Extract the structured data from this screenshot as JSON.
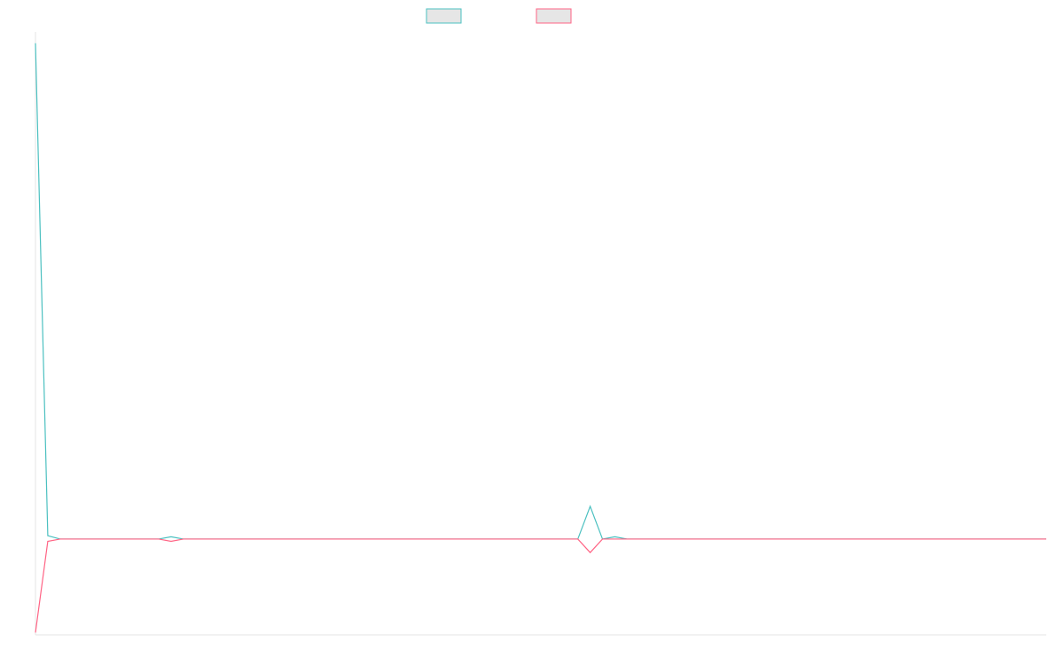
{
  "chart_data": {
    "type": "line",
    "title": "",
    "xlabel": "",
    "ylabel": "",
    "grid": false,
    "legend_position": "top",
    "x": [
      0,
      1,
      2,
      3,
      4,
      5,
      6,
      7,
      8,
      9,
      10,
      11,
      12,
      13,
      14,
      15,
      16,
      17,
      18,
      19,
      20,
      21,
      22,
      23,
      24,
      25,
      26,
      27,
      28,
      29,
      30,
      31,
      32,
      33,
      34,
      35,
      36,
      37,
      38,
      39,
      40,
      41,
      42,
      43,
      44,
      45,
      46,
      47,
      48,
      49,
      50,
      51,
      52,
      53,
      54,
      55,
      56,
      57,
      58,
      59,
      60,
      61,
      62,
      63,
      64,
      65,
      66,
      67,
      68,
      69,
      70,
      71,
      72,
      73,
      74,
      75,
      76,
      77,
      78,
      79,
      80,
      81,
      82
    ],
    "ylim": [
      -0.85,
      4.5
    ],
    "series": [
      {
        "color": "#4bc0c0",
        "fill": "#e6e6e6",
        "values": [
          4.4,
          0.03,
          0,
          0,
          0,
          0,
          0,
          0,
          0,
          0,
          0,
          0.02,
          0,
          0,
          0,
          0,
          0,
          0,
          0,
          0,
          0,
          0,
          0,
          0,
          0,
          0,
          0,
          0,
          0,
          0,
          0,
          0,
          0,
          0,
          0,
          0,
          0,
          0,
          0,
          0,
          0,
          0,
          0,
          0,
          0,
          0.29,
          0,
          0.02,
          0,
          0,
          0,
          0,
          0,
          0,
          0,
          0,
          0,
          0,
          0,
          0,
          0,
          0,
          0,
          0,
          0,
          0,
          0,
          0,
          0,
          0,
          0,
          0,
          0,
          0,
          0,
          0,
          0,
          0,
          0,
          0,
          0,
          0,
          0
        ]
      },
      {
        "color": "#ff6384",
        "fill": "#e6e6e6",
        "values": [
          -0.83,
          -0.02,
          0,
          0,
          0,
          0,
          0,
          0,
          0,
          0,
          0,
          -0.02,
          0,
          0,
          0,
          0,
          0,
          0,
          0,
          0,
          0,
          0,
          0,
          0,
          0,
          0,
          0,
          0,
          0,
          0,
          0,
          0,
          0,
          0,
          0,
          0,
          0,
          0,
          0,
          0,
          0,
          0,
          0,
          0,
          0,
          -0.12,
          0,
          0,
          0,
          0,
          0,
          0,
          0,
          0,
          0,
          0,
          0,
          0,
          0,
          0,
          0,
          0,
          0,
          0,
          0,
          0,
          0,
          0,
          0,
          0,
          0,
          0,
          0,
          0,
          0,
          0,
          0,
          0,
          0,
          0,
          0,
          0,
          0
        ]
      }
    ]
  }
}
